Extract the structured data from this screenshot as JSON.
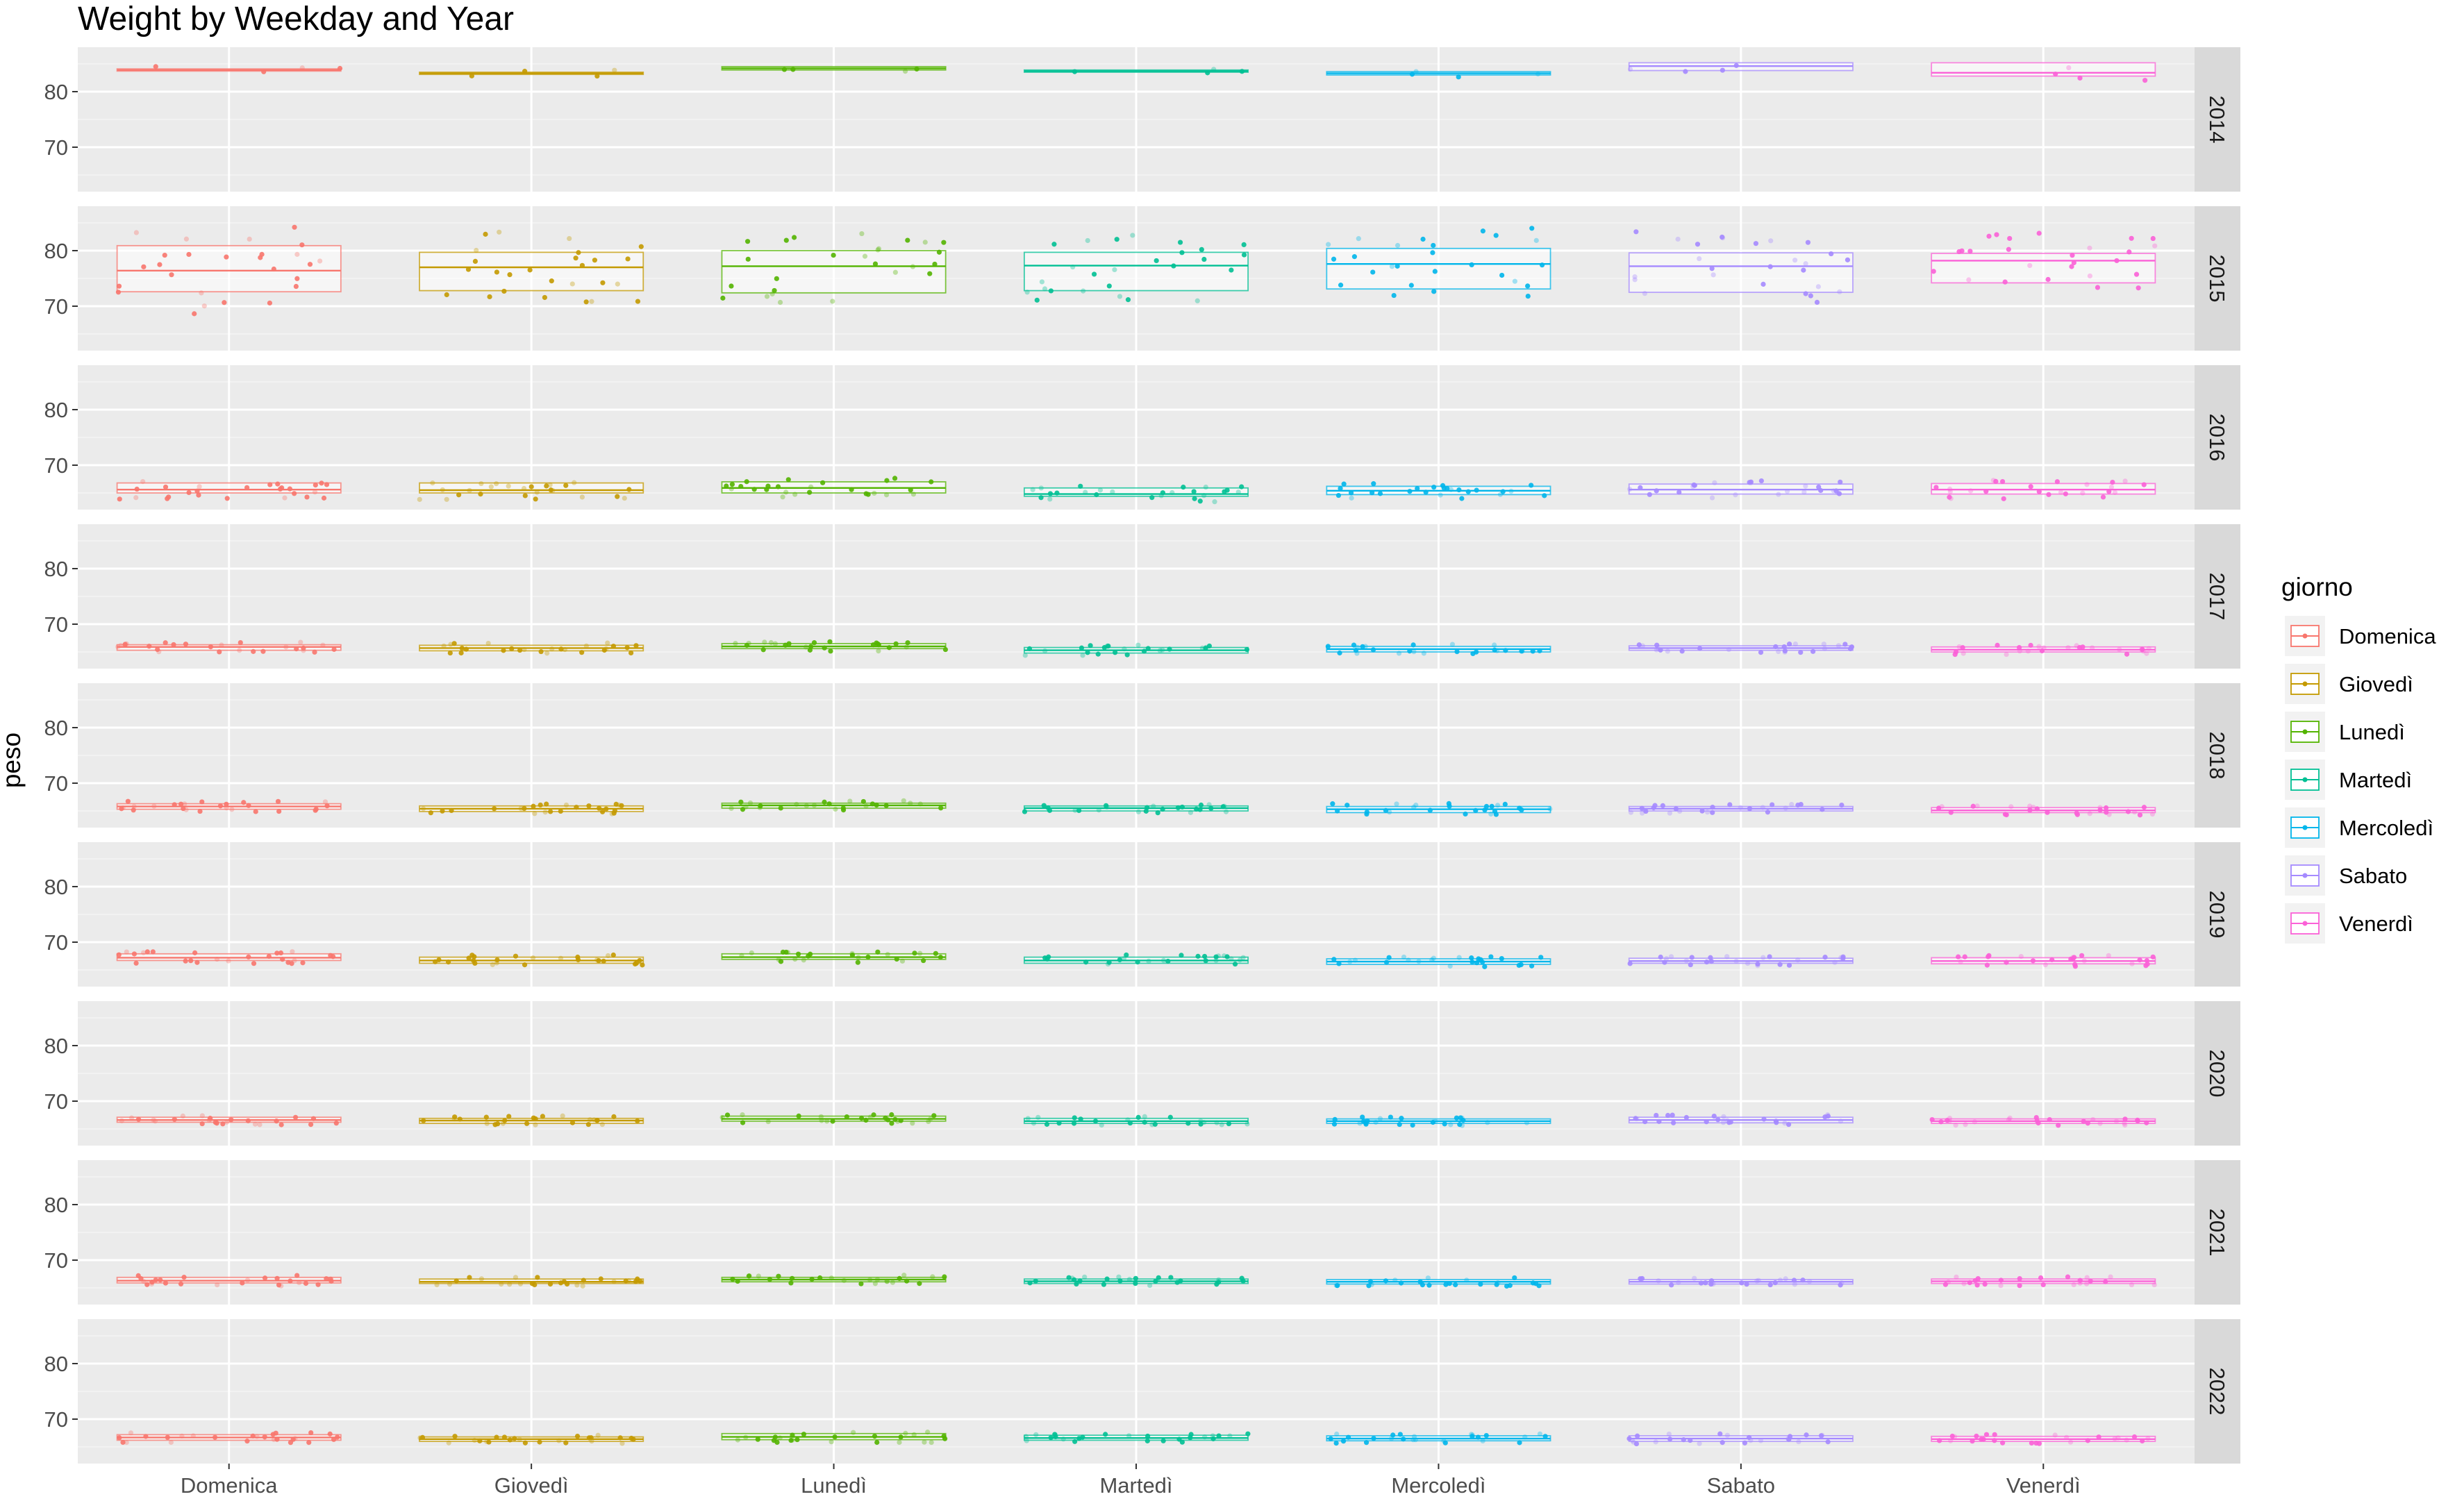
{
  "chart_data": {
    "type": "box",
    "title": "Weight by Weekday and Year",
    "xlabel": "",
    "ylabel": "peso",
    "ylim": [
      62,
      88
    ],
    "yticks": [
      70,
      80
    ],
    "grid": true,
    "legend": {
      "title": "giorno",
      "position": "right",
      "entries": [
        "Domenica",
        "Giovedì",
        "Lunedì",
        "Martedì",
        "Mercoledì",
        "Sabato",
        "Venerdì"
      ]
    },
    "categories": [
      "Domenica",
      "Giovedì",
      "Lunedì",
      "Martedì",
      "Mercoledì",
      "Sabato",
      "Venerdì"
    ],
    "colors": {
      "Domenica": "#F8766D",
      "Giovedì": "#C49A00",
      "Lunedì": "#53B400",
      "Martedì": "#00C094",
      "Mercoledì": "#00B6EB",
      "Sabato": "#A58AFF",
      "Venerdì": "#FB61D7"
    },
    "facets": [
      {
        "year": "2014",
        "boxes": [
          {
            "q1": 83.7,
            "median": 83.9,
            "q3": 84.1
          },
          {
            "q1": 83.1,
            "median": 83.3,
            "q3": 83.5
          },
          {
            "q1": 83.9,
            "median": 84.2,
            "q3": 84.5
          },
          {
            "q1": 83.5,
            "median": 83.7,
            "q3": 83.9
          },
          {
            "q1": 83.0,
            "median": 83.3,
            "q3": 83.6
          },
          {
            "q1": 83.8,
            "median": 84.6,
            "q3": 85.2
          },
          {
            "q1": 82.8,
            "median": 83.4,
            "q3": 85.2
          }
        ]
      },
      {
        "year": "2015",
        "boxes": [
          {
            "q1": 72.6,
            "median": 76.4,
            "q3": 80.9
          },
          {
            "q1": 72.8,
            "median": 77.0,
            "q3": 79.7
          },
          {
            "q1": 72.4,
            "median": 77.2,
            "q3": 80.0
          },
          {
            "q1": 72.8,
            "median": 77.3,
            "q3": 79.7
          },
          {
            "q1": 73.1,
            "median": 77.6,
            "q3": 80.4
          },
          {
            "q1": 72.5,
            "median": 77.2,
            "q3": 79.6
          },
          {
            "q1": 74.2,
            "median": 78.2,
            "q3": 79.5
          }
        ]
      },
      {
        "year": "2016",
        "boxes": [
          {
            "q1": 65.0,
            "median": 65.6,
            "q3": 66.8
          },
          {
            "q1": 65.0,
            "median": 65.5,
            "q3": 66.8
          },
          {
            "q1": 65.0,
            "median": 65.9,
            "q3": 67.0
          },
          {
            "q1": 64.4,
            "median": 64.8,
            "q3": 65.9
          },
          {
            "q1": 64.7,
            "median": 65.4,
            "q3": 66.2
          },
          {
            "q1": 64.8,
            "median": 65.6,
            "q3": 66.6
          },
          {
            "q1": 64.8,
            "median": 65.6,
            "q3": 66.7
          }
        ]
      },
      {
        "year": "2017",
        "boxes": [
          {
            "q1": 65.3,
            "median": 65.9,
            "q3": 66.3
          },
          {
            "q1": 65.2,
            "median": 65.7,
            "q3": 66.2
          },
          {
            "q1": 65.6,
            "median": 66.0,
            "q3": 66.5
          },
          {
            "q1": 64.8,
            "median": 65.3,
            "q3": 65.8
          },
          {
            "q1": 65.0,
            "median": 65.5,
            "q3": 66.0
          },
          {
            "q1": 65.3,
            "median": 65.7,
            "q3": 66.1
          },
          {
            "q1": 65.0,
            "median": 65.4,
            "q3": 65.9
          }
        ]
      },
      {
        "year": "2018",
        "boxes": [
          {
            "q1": 65.3,
            "median": 65.8,
            "q3": 66.3
          },
          {
            "q1": 64.9,
            "median": 65.4,
            "q3": 65.9
          },
          {
            "q1": 65.5,
            "median": 66.0,
            "q3": 66.4
          },
          {
            "q1": 65.0,
            "median": 65.5,
            "q3": 65.9
          },
          {
            "q1": 64.7,
            "median": 65.3,
            "q3": 65.8
          },
          {
            "q1": 65.0,
            "median": 65.4,
            "q3": 65.8
          },
          {
            "q1": 64.7,
            "median": 65.1,
            "q3": 65.6
          }
        ]
      },
      {
        "year": "2019",
        "boxes": [
          {
            "q1": 66.7,
            "median": 67.2,
            "q3": 67.9
          },
          {
            "q1": 66.2,
            "median": 66.7,
            "q3": 67.3
          },
          {
            "q1": 66.9,
            "median": 67.3,
            "q3": 67.9
          },
          {
            "q1": 66.2,
            "median": 66.7,
            "q3": 67.3
          },
          {
            "q1": 66.0,
            "median": 66.5,
            "q3": 67.0
          },
          {
            "q1": 66.2,
            "median": 66.6,
            "q3": 67.1
          },
          {
            "q1": 66.1,
            "median": 66.6,
            "q3": 67.2
          }
        ]
      },
      {
        "year": "2020",
        "boxes": [
          {
            "q1": 66.2,
            "median": 66.6,
            "q3": 67.1
          },
          {
            "q1": 66.0,
            "median": 66.5,
            "q3": 66.9
          },
          {
            "q1": 66.4,
            "median": 66.8,
            "q3": 67.3
          },
          {
            "q1": 66.0,
            "median": 66.4,
            "q3": 66.9
          },
          {
            "q1": 66.0,
            "median": 66.4,
            "q3": 66.8
          },
          {
            "q1": 66.1,
            "median": 66.6,
            "q3": 67.1
          },
          {
            "q1": 66.0,
            "median": 66.4,
            "q3": 66.8
          }
        ]
      },
      {
        "year": "2021",
        "boxes": [
          {
            "q1": 65.9,
            "median": 66.3,
            "q3": 66.9
          },
          {
            "q1": 65.8,
            "median": 66.1,
            "q3": 66.6
          },
          {
            "q1": 66.1,
            "median": 66.5,
            "q3": 66.9
          },
          {
            "q1": 65.8,
            "median": 66.2,
            "q3": 66.6
          },
          {
            "q1": 65.7,
            "median": 66.1,
            "q3": 66.5
          },
          {
            "q1": 65.7,
            "median": 66.1,
            "q3": 66.5
          },
          {
            "q1": 65.8,
            "median": 66.2,
            "q3": 66.6
          }
        ]
      },
      {
        "year": "2022",
        "boxes": [
          {
            "q1": 66.2,
            "median": 66.7,
            "q3": 67.2
          },
          {
            "q1": 66.0,
            "median": 66.4,
            "q3": 66.8
          },
          {
            "q1": 66.3,
            "median": 66.8,
            "q3": 67.4
          },
          {
            "q1": 66.2,
            "median": 66.6,
            "q3": 67.1
          },
          {
            "q1": 66.1,
            "median": 66.5,
            "q3": 67.0
          },
          {
            "q1": 66.0,
            "median": 66.5,
            "q3": 67.0
          },
          {
            "q1": 66.0,
            "median": 66.4,
            "q3": 66.9
          }
        ]
      }
    ]
  }
}
